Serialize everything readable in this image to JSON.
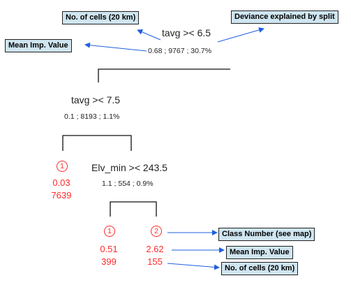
{
  "colors": {
    "box_bg": "#cfe5f0",
    "arrow": "#1f5fe0",
    "leaf": "#ff2a2a",
    "text": "#222222"
  },
  "nodes": {
    "root": {
      "split": "tavg >< 6.5",
      "stats": "0.68 ; 9767 ; 30.7%"
    },
    "left": {
      "split": "tavg >< 7.5",
      "stats": "0.1 ; 8193 ; 1.1%"
    },
    "inner": {
      "split": "Elv_min >< 243.5",
      "stats": "1.1 ; 554 ; 0.9%"
    }
  },
  "leaves": {
    "first": {
      "class": "1",
      "value": "0.03",
      "cells": "7639"
    },
    "second": {
      "class": "1",
      "value": "0.51",
      "cells": "399"
    },
    "third": {
      "class": "2",
      "value": "2.62",
      "cells": "155"
    }
  },
  "callouts": {
    "cells_top": "No. of cells (20 km)",
    "deviance": "Deviance explained by split",
    "mean_left": "Mean Imp. Value",
    "class_number": "Class Number (see map)",
    "mean_right": "Mean Imp. Value",
    "cells_bottom": "No. of cells (20 km)"
  }
}
